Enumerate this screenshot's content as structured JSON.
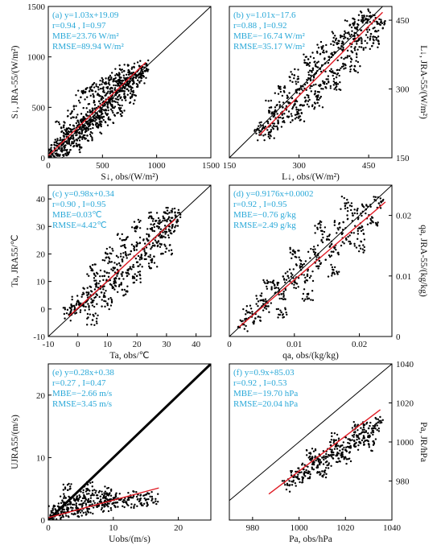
{
  "colors": {
    "points": "#000000",
    "fit_line": "#e01b24",
    "identity_line": "#000000",
    "annotation": "#29a8d8"
  },
  "chart_data": [
    {
      "type": "scatter",
      "panel": "a",
      "axis_side": "left",
      "xlabel": "S↓, obs/(W/m²)",
      "ylabel": "S↓, JRA-55/(W/m²)",
      "xlim": [
        0,
        1500
      ],
      "ylim": [
        0,
        1500
      ],
      "xticks": [
        0,
        500,
        1000,
        1500
      ],
      "yticks": [
        0,
        500,
        1000,
        1500
      ],
      "annotations": [
        "(a)  y=1.03x+19.09",
        "r=0.94 , I=0.97",
        "MBE=23.76 W/m²",
        "RMSE=89.94 W/m²"
      ],
      "fit": {
        "slope": 1.03,
        "intercept": 19.09,
        "x_range": [
          0,
          900
        ]
      },
      "identity_line": true,
      "points": [
        [
          20,
          60
        ],
        [
          40,
          30
        ],
        [
          60,
          80
        ],
        [
          80,
          120
        ],
        [
          100,
          90
        ],
        [
          130,
          160
        ],
        [
          150,
          110
        ],
        [
          170,
          210
        ],
        [
          190,
          170
        ],
        [
          210,
          280
        ],
        [
          230,
          190
        ],
        [
          250,
          260
        ],
        [
          270,
          320
        ],
        [
          290,
          240
        ],
        [
          310,
          350
        ],
        [
          330,
          300
        ],
        [
          350,
          430
        ],
        [
          370,
          340
        ],
        [
          390,
          380
        ],
        [
          410,
          470
        ],
        [
          430,
          390
        ],
        [
          450,
          440
        ],
        [
          470,
          560
        ],
        [
          490,
          450
        ],
        [
          510,
          520
        ],
        [
          530,
          620
        ],
        [
          550,
          500
        ],
        [
          570,
          590
        ],
        [
          590,
          690
        ],
        [
          610,
          560
        ],
        [
          630,
          640
        ],
        [
          650,
          720
        ],
        [
          670,
          600
        ],
        [
          690,
          700
        ],
        [
          710,
          780
        ],
        [
          730,
          680
        ],
        [
          750,
          760
        ],
        [
          770,
          840
        ],
        [
          790,
          740
        ],
        [
          810,
          820
        ],
        [
          830,
          870
        ],
        [
          850,
          800
        ],
        [
          870,
          900
        ],
        [
          890,
          860
        ],
        [
          120,
          300
        ],
        [
          220,
          460
        ],
        [
          300,
          600
        ],
        [
          380,
          660
        ],
        [
          460,
          700
        ],
        [
          520,
          740
        ],
        [
          580,
          780
        ],
        [
          640,
          820
        ],
        [
          700,
          860
        ],
        [
          160,
          40
        ],
        [
          260,
          120
        ],
        [
          360,
          220
        ],
        [
          460,
          300
        ],
        [
          560,
          380
        ],
        [
          660,
          480
        ],
        [
          760,
          600
        ]
      ]
    },
    {
      "type": "scatter",
      "panel": "b",
      "axis_side": "right",
      "xlabel": "L↓, obs/(W/m²)",
      "ylabel": "L↓, JRA-55/(W/m²)",
      "xlim": [
        150,
        500
      ],
      "ylim": [
        150,
        480
      ],
      "xticks": [
        150,
        300,
        450
      ],
      "yticks": [
        150,
        300,
        450
      ],
      "annotations": [
        "(b)  y=1.01x−17.6",
        "r=0.88 , I=0.92",
        "MBE=−16.74 W/m²",
        "RMSE=35.17 W/m²"
      ],
      "fit": {
        "slope": 1.01,
        "intercept": -17.6,
        "x_range": [
          215,
          480
        ]
      },
      "identity_line": true,
      "points": [
        [
          215,
          200
        ],
        [
          225,
          215
        ],
        [
          235,
          205
        ],
        [
          245,
          240
        ],
        [
          255,
          225
        ],
        [
          265,
          260
        ],
        [
          275,
          240
        ],
        [
          285,
          280
        ],
        [
          295,
          255
        ],
        [
          305,
          300
        ],
        [
          315,
          275
        ],
        [
          325,
          320
        ],
        [
          335,
          295
        ],
        [
          345,
          345
        ],
        [
          355,
          315
        ],
        [
          365,
          370
        ],
        [
          375,
          335
        ],
        [
          385,
          390
        ],
        [
          395,
          355
        ],
        [
          405,
          410
        ],
        [
          415,
          380
        ],
        [
          425,
          430
        ],
        [
          435,
          400
        ],
        [
          445,
          445
        ],
        [
          455,
          420
        ],
        [
          465,
          455
        ],
        [
          475,
          440
        ],
        [
          260,
          300
        ],
        [
          290,
          330
        ],
        [
          320,
          365
        ],
        [
          350,
          390
        ],
        [
          380,
          410
        ],
        [
          410,
          440
        ],
        [
          440,
          460
        ],
        [
          300,
          240
        ],
        [
          340,
          270
        ],
        [
          380,
          310
        ],
        [
          420,
          350
        ],
        [
          460,
          400
        ],
        [
          240,
          260
        ],
        [
          330,
          345
        ],
        [
          420,
          410
        ]
      ]
    },
    {
      "type": "scatter",
      "panel": "c",
      "axis_side": "left",
      "xlabel": "Ta, obs/℃",
      "ylabel": "Ta, JRA55/℃",
      "xlim": [
        -10,
        45
      ],
      "ylim": [
        -10,
        45
      ],
      "xticks": [
        -10,
        0,
        10,
        20,
        30,
        40
      ],
      "yticks": [
        -10,
        0,
        10,
        20,
        30,
        40
      ],
      "annotations": [
        "(c)  y=0.98x+0.34",
        "r=0.90 , I=0.95",
        "MBE=0.03℃",
        "RMSE=4.42℃"
      ],
      "fit": {
        "slope": 0.98,
        "intercept": 0.34,
        "x_range": [
          -3,
          33
        ]
      },
      "identity_line": true,
      "points": [
        [
          -3,
          -2
        ],
        [
          -1,
          0
        ],
        [
          0,
          3
        ],
        [
          2,
          1
        ],
        [
          3,
          6
        ],
        [
          5,
          3
        ],
        [
          6,
          9
        ],
        [
          8,
          6
        ],
        [
          9,
          12
        ],
        [
          11,
          9
        ],
        [
          12,
          15
        ],
        [
          14,
          11
        ],
        [
          15,
          18
        ],
        [
          17,
          14
        ],
        [
          18,
          21
        ],
        [
          20,
          17
        ],
        [
          21,
          24
        ],
        [
          23,
          20
        ],
        [
          24,
          27
        ],
        [
          26,
          23
        ],
        [
          27,
          30
        ],
        [
          28,
          26
        ],
        [
          29,
          33
        ],
        [
          30,
          28
        ],
        [
          31,
          35
        ],
        [
          32,
          30
        ],
        [
          33,
          34
        ],
        [
          5,
          14
        ],
        [
          10,
          20
        ],
        [
          15,
          25
        ],
        [
          20,
          30
        ],
        [
          25,
          33
        ],
        [
          5,
          -4
        ],
        [
          10,
          2
        ],
        [
          15,
          7
        ],
        [
          20,
          12
        ],
        [
          25,
          17
        ],
        [
          30,
          22
        ]
      ]
    },
    {
      "type": "scatter",
      "panel": "d",
      "axis_side": "right",
      "xlabel": "qa, obs/(kg/kg)",
      "ylabel": "qa, JRA-55/(kg/kg)",
      "xlim": [
        0,
        0.025
      ],
      "ylim": [
        0,
        0.025
      ],
      "xticks": [
        0,
        0.01,
        0.02
      ],
      "yticks": [
        0,
        0.01,
        0.02
      ],
      "annotations": [
        "(d)  y=0.9176x+0.0002",
        "r=0.92 , I=0.95",
        "MBE=−0.76 g/kg",
        "RMSE=2.49 g/kg"
      ],
      "fit": {
        "slope": 0.9176,
        "intercept": 0.0002,
        "x_range": [
          0.0015,
          0.024
        ]
      },
      "identity_line": true,
      "points": [
        [
          0.002,
          0.002
        ],
        [
          0.003,
          0.004
        ],
        [
          0.004,
          0.003
        ],
        [
          0.005,
          0.006
        ],
        [
          0.006,
          0.005
        ],
        [
          0.007,
          0.008
        ],
        [
          0.008,
          0.007
        ],
        [
          0.009,
          0.01
        ],
        [
          0.01,
          0.009
        ],
        [
          0.011,
          0.012
        ],
        [
          0.012,
          0.01
        ],
        [
          0.013,
          0.014
        ],
        [
          0.014,
          0.012
        ],
        [
          0.015,
          0.016
        ],
        [
          0.016,
          0.014
        ],
        [
          0.017,
          0.018
        ],
        [
          0.018,
          0.016
        ],
        [
          0.019,
          0.02
        ],
        [
          0.02,
          0.018
        ],
        [
          0.021,
          0.021
        ],
        [
          0.022,
          0.019
        ],
        [
          0.023,
          0.022
        ],
        [
          0.006,
          0.009
        ],
        [
          0.01,
          0.014
        ],
        [
          0.014,
          0.018
        ],
        [
          0.018,
          0.022
        ],
        [
          0.008,
          0.004
        ],
        [
          0.012,
          0.007
        ],
        [
          0.016,
          0.011
        ],
        [
          0.02,
          0.015
        ]
      ]
    },
    {
      "type": "scatter",
      "panel": "e",
      "axis_side": "left",
      "xlabel": "Uobs/(m/s)",
      "ylabel": "UJRA55/(m/s)",
      "xlim": [
        0,
        25
      ],
      "ylim": [
        0,
        25
      ],
      "xticks": [
        0,
        10,
        20
      ],
      "yticks": [
        0,
        10,
        20
      ],
      "annotations": [
        "(e)  y=0.28x+0.38",
        "r=0.27 , I=0.47",
        "MBE=−2.66 m/s",
        "RMSE=3.45 m/s"
      ],
      "fit": {
        "slope": 0.28,
        "intercept": 0.38,
        "x_range": [
          0,
          17
        ]
      },
      "identity_line": true,
      "points": [
        [
          0.5,
          1.2
        ],
        [
          1,
          0.6
        ],
        [
          1.5,
          2.2
        ],
        [
          2,
          1.0
        ],
        [
          2.5,
          2.8
        ],
        [
          3,
          1.5
        ],
        [
          3.5,
          2.0
        ],
        [
          4,
          3.2
        ],
        [
          4.5,
          1.4
        ],
        [
          5,
          2.5
        ],
        [
          5.5,
          3.8
        ],
        [
          6,
          1.8
        ],
        [
          6.5,
          2.9
        ],
        [
          7,
          4.0
        ],
        [
          7.5,
          2.1
        ],
        [
          8,
          3.0
        ],
        [
          8.5,
          3.6
        ],
        [
          9,
          2.4
        ],
        [
          9.5,
          3.1
        ],
        [
          10,
          2.7
        ],
        [
          11,
          3.3
        ],
        [
          12,
          2.9
        ],
        [
          13,
          3.6
        ],
        [
          14,
          3.0
        ],
        [
          15,
          3.2
        ],
        [
          16,
          3.4
        ],
        [
          3,
          4.8
        ],
        [
          6,
          5.0
        ],
        [
          9,
          4.3
        ]
      ]
    },
    {
      "type": "scatter",
      "panel": "f",
      "axis_side": "right",
      "xlabel": "Pa, obs/hPa",
      "ylabel": "Pa, JR/hPa",
      "xlim": [
        970,
        1040
      ],
      "ylim": [
        960,
        1040
      ],
      "xticks": [
        980,
        1000,
        1020,
        1040
      ],
      "yticks": [
        980,
        1000,
        1020,
        1040
      ],
      "annotations": [
        "(f)  y=0.9x+85.03",
        "r=0.92 , I=0.53",
        "MBE=−19.70 hPa",
        "RMSE=20.04 hPa"
      ],
      "fit": {
        "slope": 0.9,
        "intercept": 85.03,
        "x_range": [
          987,
          1035
        ]
      },
      "identity_line": true,
      "points": [
        [
          995,
          978
        ],
        [
          998,
          983
        ],
        [
          1000,
          981
        ],
        [
          1002,
          986
        ],
        [
          1004,
          984
        ],
        [
          1006,
          989
        ],
        [
          1008,
          987
        ],
        [
          1010,
          992
        ],
        [
          1012,
          990
        ],
        [
          1014,
          995
        ],
        [
          1016,
          993
        ],
        [
          1018,
          998
        ],
        [
          1020,
          996
        ],
        [
          1022,
          1001
        ],
        [
          1024,
          999
        ],
        [
          1026,
          1004
        ],
        [
          1028,
          1002
        ],
        [
          1030,
          1007
        ],
        [
          1032,
          1005
        ],
        [
          1034,
          1010
        ],
        [
          1005,
          994
        ],
        [
          1015,
          1001
        ],
        [
          1025,
          1008
        ],
        [
          1010,
          985
        ],
        [
          1020,
          992
        ],
        [
          1030,
          999
        ]
      ]
    }
  ]
}
